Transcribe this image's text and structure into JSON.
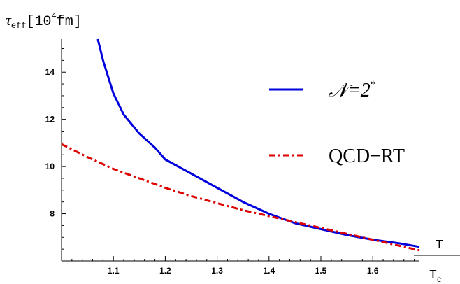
{
  "chart_data": {
    "type": "line",
    "ylabel": {
      "sym": "τ",
      "sub": "eff",
      "unit_open": "[10",
      "unit_exp": "4",
      "unit_close": "fm]"
    },
    "xlabel": {
      "num": "T",
      "den": "T",
      "den_sub": "c"
    },
    "xlim": [
      1.0,
      1.69
    ],
    "ylim": [
      6.0,
      15.4
    ],
    "x_ticks": [
      1.1,
      1.2,
      1.3,
      1.4,
      1.5,
      1.6
    ],
    "y_ticks": [
      8,
      10,
      12,
      14
    ],
    "grid": false,
    "legend_position": "top-right",
    "series": [
      {
        "name": "𝒩=2*",
        "legend_main": "𝒩=2",
        "legend_sup": "*",
        "color": "#0000dd",
        "style": "solid",
        "points": [
          [
            1.07,
            15.4
          ],
          [
            1.08,
            14.5
          ],
          [
            1.09,
            13.8
          ],
          [
            1.1,
            13.1
          ],
          [
            1.12,
            12.2
          ],
          [
            1.15,
            11.4
          ],
          [
            1.18,
            10.8
          ],
          [
            1.2,
            10.3
          ],
          [
            1.25,
            9.7
          ],
          [
            1.3,
            9.1
          ],
          [
            1.35,
            8.5
          ],
          [
            1.4,
            8.0
          ],
          [
            1.45,
            7.6
          ],
          [
            1.5,
            7.35
          ],
          [
            1.55,
            7.1
          ],
          [
            1.6,
            6.9
          ],
          [
            1.65,
            6.75
          ],
          [
            1.69,
            6.6
          ]
        ]
      },
      {
        "name": "QCD−RT",
        "color": "#dd0000",
        "style": "dashdot",
        "points": [
          [
            1.0,
            10.95
          ],
          [
            1.05,
            10.4
          ],
          [
            1.1,
            9.9
          ],
          [
            1.15,
            9.5
          ],
          [
            1.2,
            9.1
          ],
          [
            1.25,
            8.75
          ],
          [
            1.3,
            8.45
          ],
          [
            1.35,
            8.15
          ],
          [
            1.4,
            7.9
          ],
          [
            1.45,
            7.65
          ],
          [
            1.5,
            7.4
          ],
          [
            1.55,
            7.15
          ],
          [
            1.6,
            6.9
          ],
          [
            1.65,
            6.65
          ],
          [
            1.69,
            6.45
          ]
        ]
      }
    ]
  }
}
